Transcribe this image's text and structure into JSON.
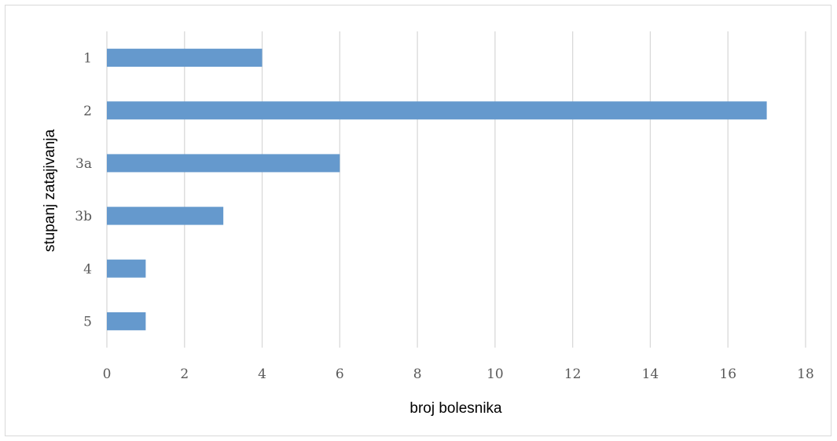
{
  "chart_data": {
    "type": "bar",
    "orientation": "horizontal",
    "categories": [
      "1",
      "2",
      "3a",
      "3b",
      "4",
      "5"
    ],
    "values": [
      4,
      17,
      6,
      3,
      1,
      1
    ],
    "xlabel": "broj bolesnika",
    "ylabel": "stupanj zatajivanja",
    "xlim": [
      0,
      18
    ],
    "xticks": [
      0,
      2,
      4,
      6,
      8,
      10,
      12,
      14,
      16,
      18
    ],
    "grid": "vertical",
    "bar_color": "#6599cd",
    "grid_color": "#d9d9d9"
  }
}
